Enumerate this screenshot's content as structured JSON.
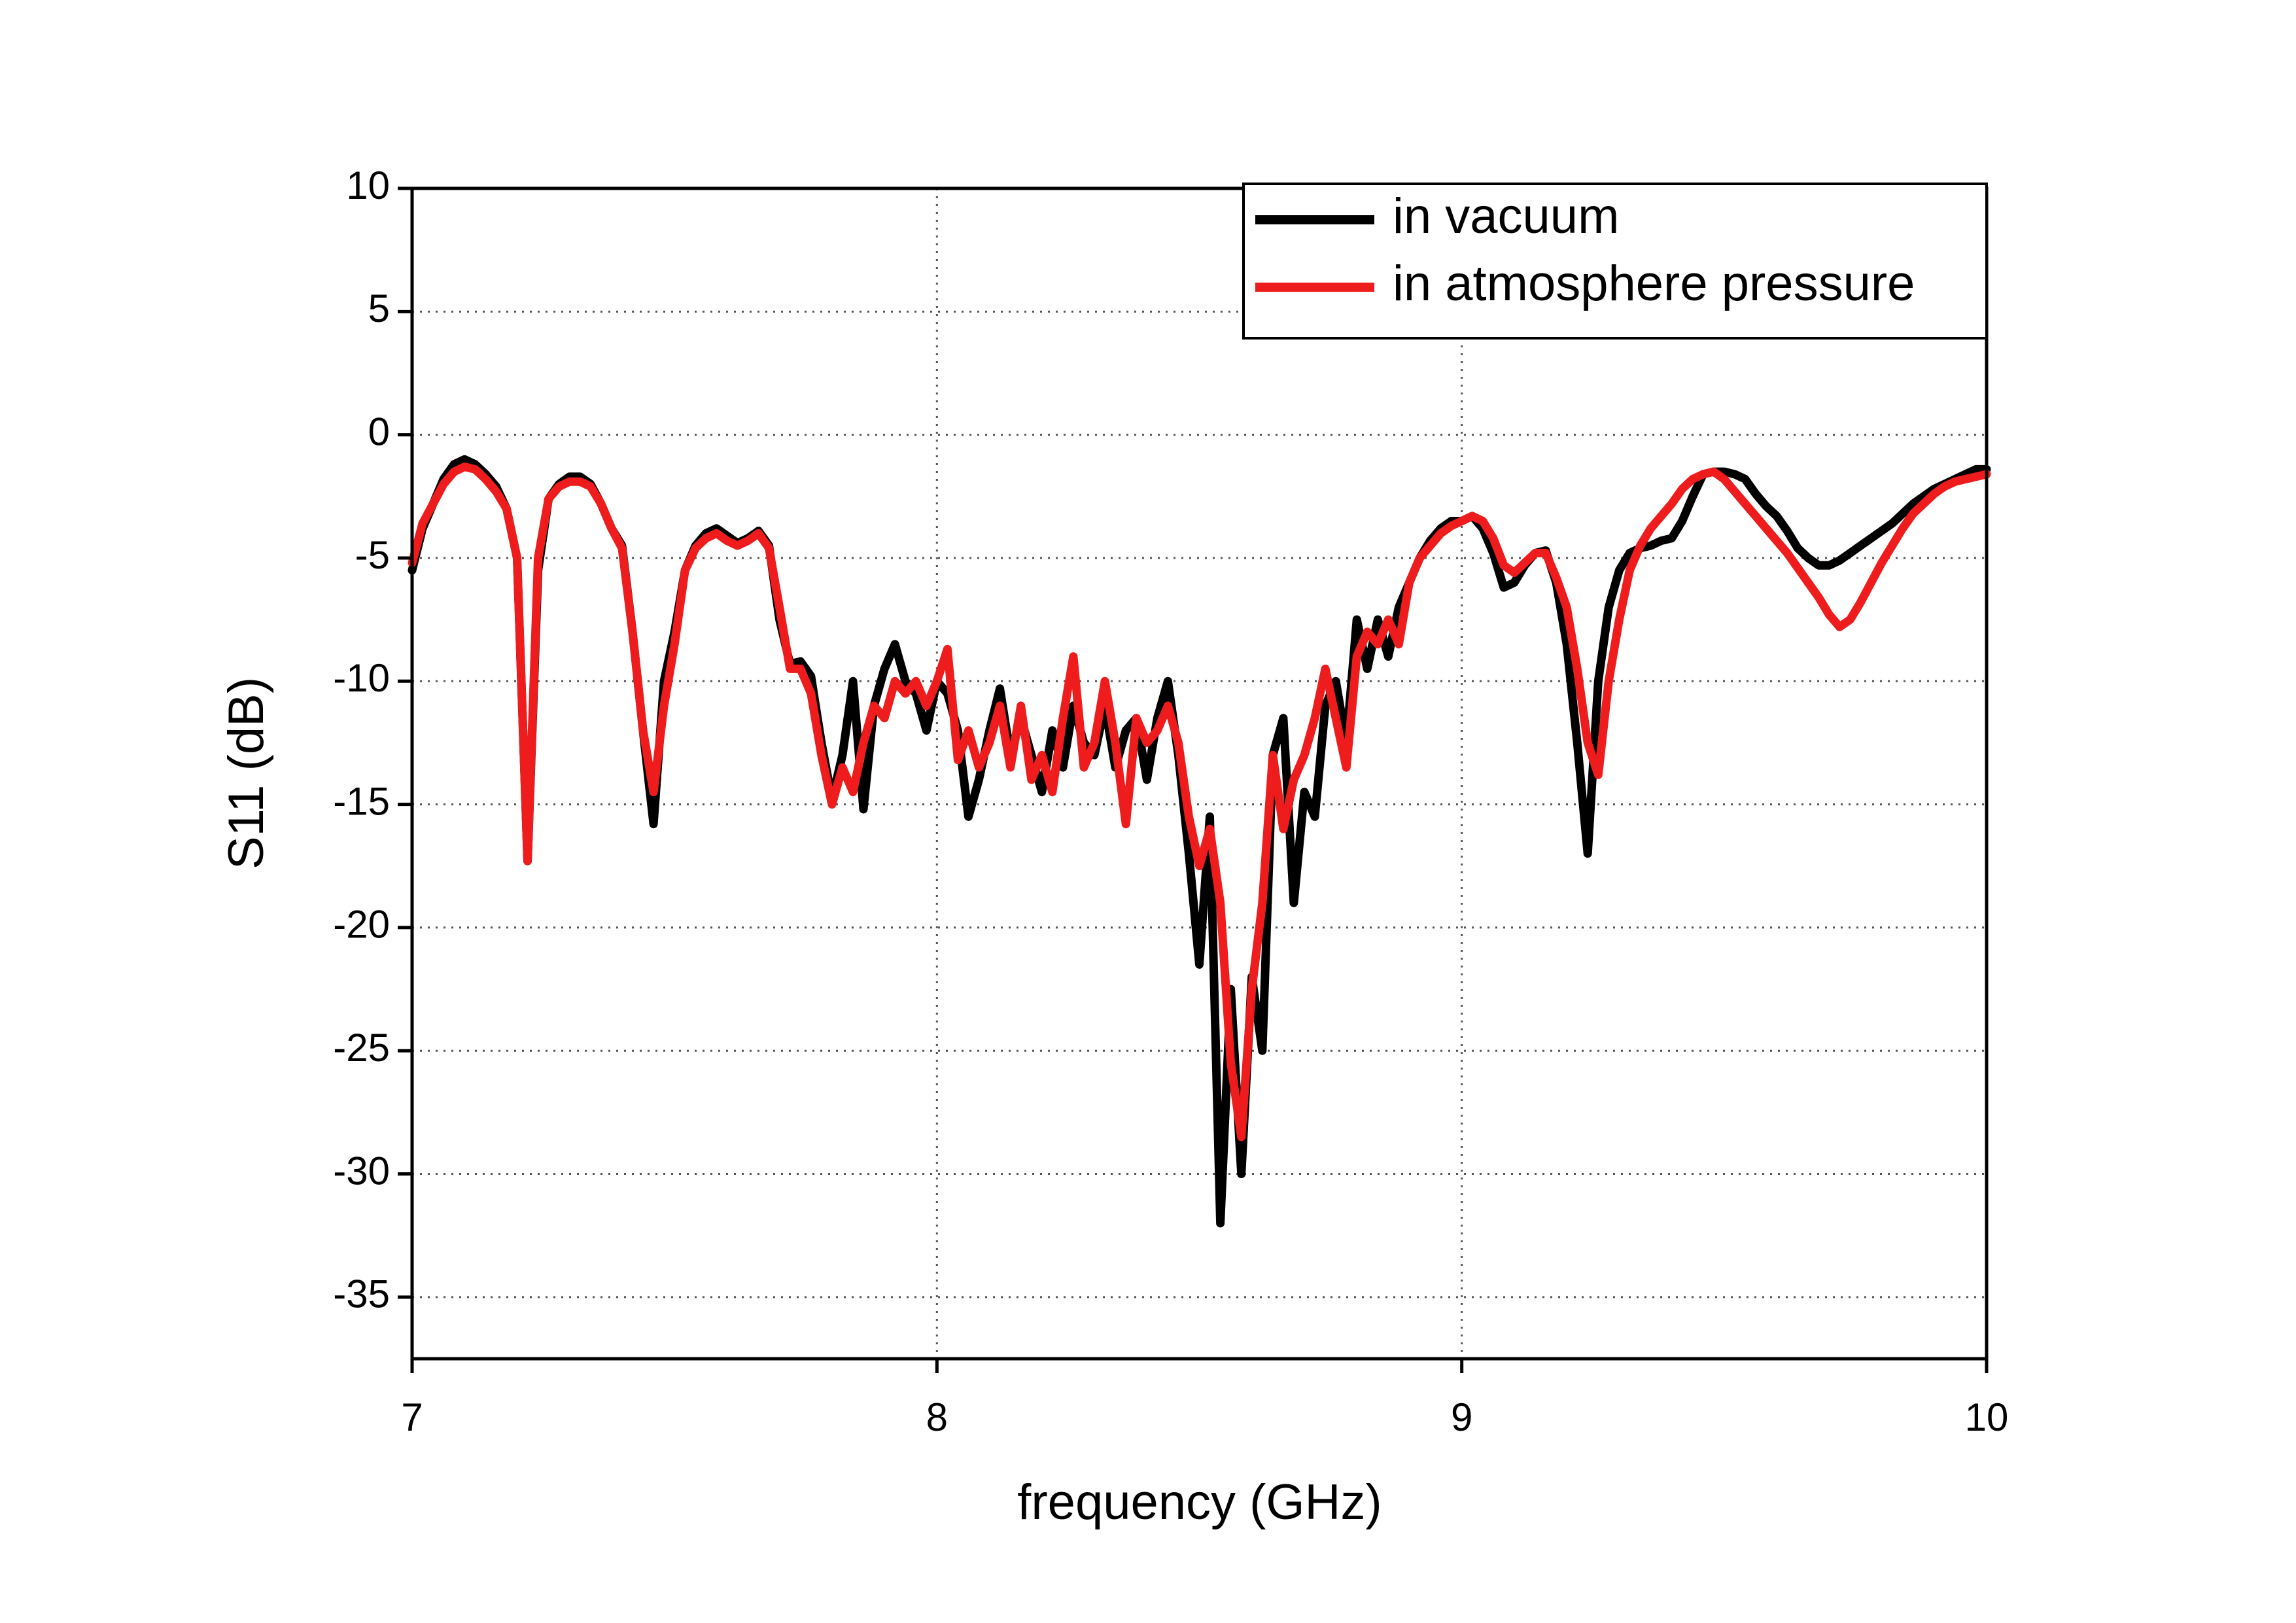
{
  "chart_data": {
    "type": "line",
    "xlabel": "frequency (GHz)",
    "ylabel": "S11 (dB)",
    "xlim": [
      7,
      10
    ],
    "ylim": [
      -37.5,
      10
    ],
    "xticks": [
      7,
      8,
      9,
      10
    ],
    "yticks": [
      -35,
      -30,
      -25,
      -20,
      -15,
      -10,
      -5,
      0,
      5,
      10
    ],
    "grid": true,
    "legend": "upper right",
    "x": [
      7.0,
      7.02,
      7.04,
      7.06,
      7.08,
      7.1,
      7.12,
      7.14,
      7.16,
      7.18,
      7.2,
      7.22,
      7.24,
      7.26,
      7.28,
      7.3,
      7.32,
      7.34,
      7.36,
      7.38,
      7.4,
      7.42,
      7.44,
      7.46,
      7.48,
      7.5,
      7.52,
      7.54,
      7.56,
      7.58,
      7.6,
      7.62,
      7.64,
      7.66,
      7.68,
      7.7,
      7.72,
      7.74,
      7.76,
      7.78,
      7.8,
      7.82,
      7.84,
      7.86,
      7.88,
      7.9,
      7.92,
      7.94,
      7.96,
      7.98,
      8.0,
      8.02,
      8.04,
      8.06,
      8.08,
      8.1,
      8.12,
      8.14,
      8.16,
      8.18,
      8.2,
      8.22,
      8.24,
      8.26,
      8.28,
      8.3,
      8.32,
      8.34,
      8.36,
      8.38,
      8.4,
      8.42,
      8.44,
      8.46,
      8.48,
      8.5,
      8.52,
      8.54,
      8.56,
      8.58,
      8.6,
      8.62,
      8.64,
      8.66,
      8.68,
      8.7,
      8.72,
      8.74,
      8.76,
      8.78,
      8.8,
      8.82,
      8.84,
      8.86,
      8.88,
      8.9,
      8.92,
      8.94,
      8.96,
      8.98,
      9.0,
      9.02,
      9.04,
      9.06,
      9.08,
      9.1,
      9.12,
      9.14,
      9.16,
      9.18,
      9.2,
      9.22,
      9.24,
      9.26,
      9.28,
      9.3,
      9.32,
      9.34,
      9.36,
      9.38,
      9.4,
      9.42,
      9.44,
      9.46,
      9.48,
      9.5,
      9.52,
      9.54,
      9.56,
      9.58,
      9.6,
      9.62,
      9.64,
      9.66,
      9.68,
      9.7,
      9.72,
      9.74,
      9.76,
      9.78,
      9.8,
      9.82,
      9.84,
      9.86,
      9.88,
      9.9,
      9.92,
      9.94,
      9.96,
      9.98,
      10.0
    ],
    "series": [
      {
        "name": "in vacuum",
        "color": "#000000",
        "values": [
          -5.5,
          -3.8,
          -2.8,
          -1.8,
          -1.2,
          -1.0,
          -1.2,
          -1.6,
          -2.1,
          -3.0,
          -5.0,
          -17.3,
          -5.5,
          -2.6,
          -2.0,
          -1.7,
          -1.7,
          -2.0,
          -2.8,
          -3.8,
          -4.5,
          -8.0,
          -12.0,
          -15.8,
          -10.0,
          -8.0,
          -5.5,
          -4.5,
          -4.0,
          -3.8,
          -4.1,
          -4.4,
          -4.2,
          -3.9,
          -4.5,
          -7.5,
          -9.3,
          -9.2,
          -9.8,
          -12.5,
          -14.8,
          -13.0,
          -10.0,
          -15.2,
          -11.0,
          -9.5,
          -8.5,
          -10.0,
          -10.5,
          -12.0,
          -10.0,
          -10.5,
          -12.0,
          -15.5,
          -14.0,
          -12.0,
          -10.3,
          -13.0,
          -11.5,
          -13.0,
          -14.5,
          -12.0,
          -13.5,
          -11.0,
          -12.5,
          -13.0,
          -11.0,
          -13.5,
          -12.0,
          -11.5,
          -14.0,
          -11.5,
          -10.0,
          -13.0,
          -17.0,
          -21.5,
          -15.5,
          -32.0,
          -22.5,
          -30.0,
          -22.0,
          -25.0,
          -13.0,
          -11.5,
          -19.0,
          -14.5,
          -15.5,
          -11.0,
          -10.0,
          -12.5,
          -7.5,
          -9.5,
          -7.5,
          -9.0,
          -7.0,
          -6.0,
          -5.0,
          -4.3,
          -3.8,
          -3.5,
          -3.5,
          -3.3,
          -3.8,
          -4.8,
          -6.2,
          -6.0,
          -5.3,
          -4.8,
          -4.7,
          -6.0,
          -8.5,
          -12.5,
          -17.0,
          -10.0,
          -7.0,
          -5.5,
          -4.8,
          -4.6,
          -4.5,
          -4.3,
          -4.2,
          -3.5,
          -2.5,
          -1.6,
          -1.5,
          -1.5,
          -1.6,
          -1.8,
          -2.4,
          -2.9,
          -3.3,
          -3.9,
          -4.6,
          -5.0,
          -5.3,
          -5.3,
          -5.1,
          -4.8,
          -4.5,
          -4.2,
          -3.9,
          -3.6,
          -3.2,
          -2.8,
          -2.5,
          -2.2,
          -2.0,
          -1.8,
          -1.6,
          -1.4,
          -1.4
        ]
      },
      {
        "name": "in atmosphere pressure",
        "color": "#ee1c1c",
        "values": [
          -5.2,
          -3.6,
          -2.8,
          -2.0,
          -1.5,
          -1.3,
          -1.4,
          -1.8,
          -2.3,
          -3.0,
          -5.0,
          -17.3,
          -5.0,
          -2.6,
          -2.1,
          -1.9,
          -1.9,
          -2.1,
          -2.8,
          -3.8,
          -4.6,
          -8.0,
          -12.0,
          -14.5,
          -11.0,
          -8.5,
          -5.5,
          -4.6,
          -4.2,
          -4.0,
          -4.3,
          -4.5,
          -4.3,
          -4.0,
          -4.6,
          -7.0,
          -9.5,
          -9.5,
          -10.5,
          -13.0,
          -15.0,
          -13.5,
          -14.5,
          -12.5,
          -11.0,
          -11.5,
          -10.0,
          -10.5,
          -10.0,
          -11.0,
          -10.0,
          -8.7,
          -13.2,
          -12.0,
          -13.5,
          -12.5,
          -11.0,
          -13.5,
          -11.0,
          -14.0,
          -13.0,
          -14.5,
          -11.5,
          -9.0,
          -13.5,
          -12.5,
          -10.0,
          -12.5,
          -15.8,
          -11.5,
          -12.5,
          -12.0,
          -11.0,
          -12.5,
          -15.5,
          -17.5,
          -16.0,
          -19.0,
          -25.5,
          -28.5,
          -22.5,
          -19.0,
          -13.0,
          -16.0,
          -14.0,
          -13.0,
          -11.5,
          -9.5,
          -11.5,
          -13.5,
          -9.0,
          -8.0,
          -8.5,
          -7.5,
          -8.5,
          -6.0,
          -5.0,
          -4.5,
          -4.0,
          -3.7,
          -3.5,
          -3.3,
          -3.5,
          -4.2,
          -5.3,
          -5.6,
          -5.2,
          -4.8,
          -4.8,
          -5.8,
          -7.0,
          -9.5,
          -12.5,
          -13.8,
          -10.0,
          -7.5,
          -5.5,
          -4.5,
          -3.8,
          -3.3,
          -2.8,
          -2.2,
          -1.8,
          -1.6,
          -1.5,
          -1.8,
          -2.3,
          -2.8,
          -3.3,
          -3.8,
          -4.3,
          -4.8,
          -5.4,
          -6.0,
          -6.6,
          -7.3,
          -7.8,
          -7.5,
          -6.8,
          -6.0,
          -5.2,
          -4.5,
          -3.8,
          -3.2,
          -2.8,
          -2.4,
          -2.1,
          -1.9,
          -1.8,
          -1.7,
          -1.6
        ]
      }
    ]
  }
}
